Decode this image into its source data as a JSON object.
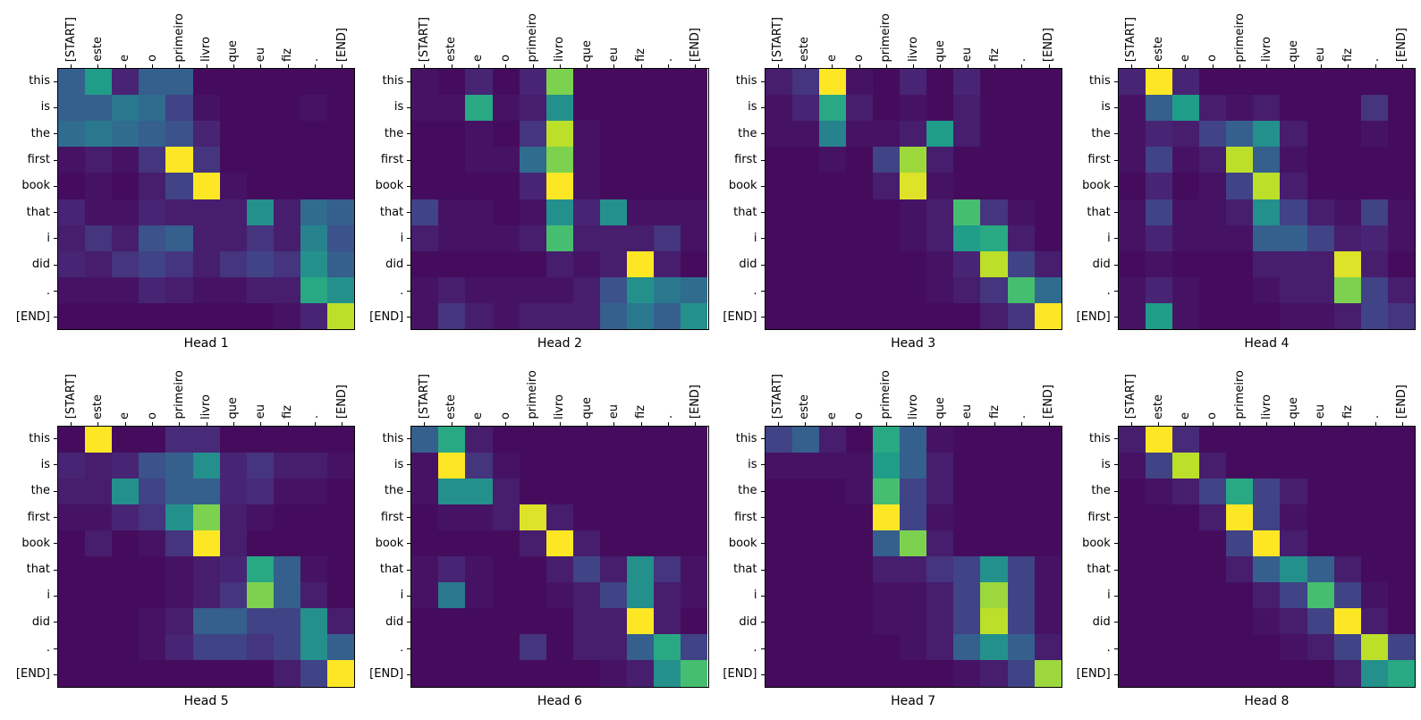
{
  "figure": {
    "background": "#ffffff",
    "text_color": "#000000"
  },
  "chart_data": {
    "type": "heatmap",
    "colormap": "viridis",
    "colormap_anchors": {
      "low": "#440154",
      "mid": "#21918c",
      "high": "#fde725"
    },
    "vmin": 0,
    "vmax": 1,
    "layout": {
      "rows": 2,
      "cols": 4,
      "grid": false,
      "x_tick_rotation_deg": 90
    },
    "x_tokens": [
      "[START]",
      "este",
      "e",
      "o",
      "primeiro",
      "livro",
      "que",
      "eu",
      "fiz",
      ".",
      "[END]"
    ],
    "y_tokens": [
      "this",
      "is",
      "the",
      "first",
      "book",
      "that",
      "i",
      "did",
      ".",
      "[END]"
    ],
    "heads": [
      {
        "title": "Head 1",
        "values": [
          [
            0.3,
            0.55,
            0.1,
            0.3,
            0.3,
            0.03,
            0.03,
            0.03,
            0.03,
            0.03,
            0.03
          ],
          [
            0.3,
            0.3,
            0.4,
            0.35,
            0.2,
            0.05,
            0.03,
            0.03,
            0.03,
            0.05,
            0.03
          ],
          [
            0.35,
            0.4,
            0.35,
            0.3,
            0.25,
            0.1,
            0.03,
            0.03,
            0.03,
            0.03,
            0.03
          ],
          [
            0.05,
            0.08,
            0.05,
            0.15,
            1.0,
            0.15,
            0.03,
            0.03,
            0.03,
            0.03,
            0.03
          ],
          [
            0.03,
            0.05,
            0.03,
            0.08,
            0.2,
            1.0,
            0.05,
            0.03,
            0.03,
            0.03,
            0.03
          ],
          [
            0.1,
            0.05,
            0.05,
            0.1,
            0.08,
            0.08,
            0.08,
            0.5,
            0.08,
            0.35,
            0.3
          ],
          [
            0.08,
            0.15,
            0.08,
            0.25,
            0.3,
            0.08,
            0.08,
            0.15,
            0.08,
            0.45,
            0.25
          ],
          [
            0.1,
            0.08,
            0.15,
            0.2,
            0.15,
            0.08,
            0.15,
            0.2,
            0.15,
            0.5,
            0.3
          ],
          [
            0.05,
            0.05,
            0.05,
            0.1,
            0.08,
            0.05,
            0.05,
            0.08,
            0.08,
            0.6,
            0.5
          ],
          [
            0.03,
            0.03,
            0.03,
            0.03,
            0.03,
            0.03,
            0.03,
            0.03,
            0.05,
            0.1,
            0.9
          ]
        ]
      },
      {
        "title": "Head 2",
        "values": [
          [
            0.05,
            0.03,
            0.1,
            0.03,
            0.1,
            0.8,
            0.03,
            0.03,
            0.03,
            0.03,
            0.03
          ],
          [
            0.05,
            0.05,
            0.6,
            0.05,
            0.08,
            0.5,
            0.03,
            0.03,
            0.03,
            0.03,
            0.03
          ],
          [
            0.03,
            0.03,
            0.05,
            0.03,
            0.15,
            0.9,
            0.05,
            0.03,
            0.03,
            0.03,
            0.03
          ],
          [
            0.03,
            0.03,
            0.05,
            0.05,
            0.35,
            0.8,
            0.05,
            0.03,
            0.03,
            0.03,
            0.03
          ],
          [
            0.03,
            0.03,
            0.03,
            0.03,
            0.1,
            1.0,
            0.05,
            0.03,
            0.03,
            0.03,
            0.03
          ],
          [
            0.2,
            0.05,
            0.05,
            0.03,
            0.05,
            0.5,
            0.1,
            0.5,
            0.05,
            0.05,
            0.05
          ],
          [
            0.08,
            0.05,
            0.05,
            0.05,
            0.08,
            0.7,
            0.08,
            0.08,
            0.08,
            0.15,
            0.05
          ],
          [
            0.03,
            0.03,
            0.03,
            0.03,
            0.03,
            0.08,
            0.05,
            0.08,
            1.0,
            0.08,
            0.03
          ],
          [
            0.05,
            0.08,
            0.05,
            0.05,
            0.05,
            0.05,
            0.08,
            0.25,
            0.5,
            0.4,
            0.35
          ],
          [
            0.05,
            0.15,
            0.08,
            0.05,
            0.08,
            0.08,
            0.08,
            0.3,
            0.4,
            0.3,
            0.5
          ]
        ]
      },
      {
        "title": "Head 3",
        "values": [
          [
            0.08,
            0.15,
            1.0,
            0.05,
            0.03,
            0.1,
            0.03,
            0.1,
            0.03,
            0.03,
            0.03
          ],
          [
            0.05,
            0.1,
            0.6,
            0.08,
            0.03,
            0.05,
            0.03,
            0.08,
            0.03,
            0.03,
            0.03
          ],
          [
            0.05,
            0.05,
            0.45,
            0.05,
            0.05,
            0.08,
            0.55,
            0.08,
            0.03,
            0.03,
            0.03
          ],
          [
            0.03,
            0.03,
            0.05,
            0.03,
            0.2,
            0.85,
            0.08,
            0.03,
            0.03,
            0.03,
            0.03
          ],
          [
            0.03,
            0.03,
            0.03,
            0.03,
            0.08,
            0.95,
            0.05,
            0.03,
            0.03,
            0.03,
            0.03
          ],
          [
            0.03,
            0.03,
            0.03,
            0.03,
            0.03,
            0.05,
            0.08,
            0.7,
            0.15,
            0.05,
            0.03
          ],
          [
            0.03,
            0.03,
            0.03,
            0.03,
            0.03,
            0.05,
            0.08,
            0.55,
            0.6,
            0.08,
            0.03
          ],
          [
            0.03,
            0.03,
            0.03,
            0.03,
            0.03,
            0.03,
            0.05,
            0.1,
            0.9,
            0.2,
            0.08
          ],
          [
            0.03,
            0.03,
            0.03,
            0.03,
            0.03,
            0.03,
            0.05,
            0.08,
            0.15,
            0.7,
            0.35
          ],
          [
            0.03,
            0.03,
            0.03,
            0.03,
            0.03,
            0.03,
            0.03,
            0.03,
            0.08,
            0.15,
            1.0
          ]
        ]
      },
      {
        "title": "Head 4",
        "values": [
          [
            0.1,
            1.0,
            0.1,
            0.03,
            0.03,
            0.03,
            0.03,
            0.03,
            0.03,
            0.03,
            0.03
          ],
          [
            0.05,
            0.3,
            0.55,
            0.08,
            0.05,
            0.08,
            0.03,
            0.03,
            0.03,
            0.15,
            0.03
          ],
          [
            0.05,
            0.1,
            0.08,
            0.2,
            0.3,
            0.5,
            0.08,
            0.03,
            0.03,
            0.05,
            0.03
          ],
          [
            0.05,
            0.2,
            0.05,
            0.08,
            0.9,
            0.3,
            0.05,
            0.03,
            0.03,
            0.03,
            0.03
          ],
          [
            0.03,
            0.1,
            0.03,
            0.05,
            0.2,
            0.9,
            0.08,
            0.03,
            0.03,
            0.03,
            0.03
          ],
          [
            0.05,
            0.2,
            0.05,
            0.05,
            0.08,
            0.5,
            0.2,
            0.08,
            0.05,
            0.2,
            0.05
          ],
          [
            0.05,
            0.1,
            0.05,
            0.05,
            0.05,
            0.3,
            0.3,
            0.2,
            0.08,
            0.1,
            0.05
          ],
          [
            0.03,
            0.05,
            0.03,
            0.03,
            0.03,
            0.08,
            0.08,
            0.08,
            0.95,
            0.08,
            0.03
          ],
          [
            0.05,
            0.1,
            0.05,
            0.03,
            0.03,
            0.05,
            0.08,
            0.08,
            0.8,
            0.2,
            0.08
          ],
          [
            0.05,
            0.55,
            0.05,
            0.03,
            0.03,
            0.03,
            0.05,
            0.05,
            0.08,
            0.2,
            0.15
          ]
        ]
      },
      {
        "title": "Head 5",
        "values": [
          [
            0.03,
            1.0,
            0.03,
            0.03,
            0.12,
            0.12,
            0.03,
            0.03,
            0.03,
            0.03,
            0.03
          ],
          [
            0.1,
            0.08,
            0.1,
            0.25,
            0.3,
            0.5,
            0.1,
            0.15,
            0.08,
            0.08,
            0.05
          ],
          [
            0.08,
            0.08,
            0.5,
            0.2,
            0.3,
            0.3,
            0.1,
            0.12,
            0.05,
            0.05,
            0.03
          ],
          [
            0.05,
            0.05,
            0.1,
            0.15,
            0.5,
            0.8,
            0.08,
            0.05,
            0.03,
            0.03,
            0.03
          ],
          [
            0.03,
            0.08,
            0.03,
            0.05,
            0.15,
            1.0,
            0.08,
            0.03,
            0.03,
            0.03,
            0.03
          ],
          [
            0.03,
            0.03,
            0.03,
            0.03,
            0.05,
            0.08,
            0.1,
            0.6,
            0.3,
            0.05,
            0.03
          ],
          [
            0.03,
            0.03,
            0.03,
            0.03,
            0.05,
            0.08,
            0.15,
            0.8,
            0.3,
            0.08,
            0.03
          ],
          [
            0.03,
            0.03,
            0.03,
            0.05,
            0.08,
            0.3,
            0.3,
            0.2,
            0.2,
            0.5,
            0.08
          ],
          [
            0.03,
            0.03,
            0.03,
            0.05,
            0.1,
            0.2,
            0.2,
            0.15,
            0.2,
            0.5,
            0.3
          ],
          [
            0.03,
            0.03,
            0.03,
            0.03,
            0.03,
            0.03,
            0.03,
            0.03,
            0.08,
            0.2,
            1.0
          ]
        ]
      },
      {
        "title": "Head 6",
        "values": [
          [
            0.3,
            0.6,
            0.08,
            0.03,
            0.03,
            0.03,
            0.03,
            0.03,
            0.03,
            0.03,
            0.03
          ],
          [
            0.05,
            1.0,
            0.15,
            0.05,
            0.03,
            0.03,
            0.03,
            0.03,
            0.03,
            0.03,
            0.03
          ],
          [
            0.05,
            0.5,
            0.5,
            0.08,
            0.03,
            0.03,
            0.03,
            0.03,
            0.03,
            0.03,
            0.03
          ],
          [
            0.03,
            0.05,
            0.05,
            0.08,
            0.95,
            0.08,
            0.03,
            0.03,
            0.03,
            0.03,
            0.03
          ],
          [
            0.03,
            0.03,
            0.03,
            0.03,
            0.08,
            1.0,
            0.08,
            0.03,
            0.03,
            0.03,
            0.03
          ],
          [
            0.05,
            0.1,
            0.05,
            0.03,
            0.03,
            0.08,
            0.2,
            0.08,
            0.5,
            0.15,
            0.05
          ],
          [
            0.05,
            0.4,
            0.05,
            0.03,
            0.03,
            0.05,
            0.08,
            0.2,
            0.5,
            0.08,
            0.05
          ],
          [
            0.03,
            0.03,
            0.03,
            0.03,
            0.03,
            0.03,
            0.08,
            0.08,
            1.0,
            0.08,
            0.03
          ],
          [
            0.03,
            0.03,
            0.03,
            0.03,
            0.15,
            0.03,
            0.08,
            0.08,
            0.3,
            0.6,
            0.2
          ],
          [
            0.03,
            0.03,
            0.03,
            0.03,
            0.03,
            0.03,
            0.03,
            0.05,
            0.08,
            0.5,
            0.7
          ]
        ]
      },
      {
        "title": "Head 7",
        "values": [
          [
            0.2,
            0.3,
            0.08,
            0.03,
            0.6,
            0.3,
            0.05,
            0.03,
            0.03,
            0.03,
            0.03
          ],
          [
            0.05,
            0.05,
            0.05,
            0.05,
            0.55,
            0.3,
            0.08,
            0.03,
            0.03,
            0.03,
            0.03
          ],
          [
            0.03,
            0.03,
            0.03,
            0.05,
            0.7,
            0.2,
            0.08,
            0.03,
            0.03,
            0.03,
            0.03
          ],
          [
            0.03,
            0.03,
            0.03,
            0.03,
            1.0,
            0.2,
            0.05,
            0.03,
            0.03,
            0.03,
            0.03
          ],
          [
            0.03,
            0.03,
            0.03,
            0.03,
            0.3,
            0.8,
            0.08,
            0.03,
            0.03,
            0.03,
            0.03
          ],
          [
            0.03,
            0.03,
            0.03,
            0.03,
            0.08,
            0.08,
            0.15,
            0.2,
            0.5,
            0.2,
            0.05
          ],
          [
            0.03,
            0.03,
            0.03,
            0.03,
            0.05,
            0.05,
            0.08,
            0.2,
            0.85,
            0.2,
            0.05
          ],
          [
            0.03,
            0.03,
            0.03,
            0.03,
            0.05,
            0.05,
            0.08,
            0.2,
            0.9,
            0.2,
            0.05
          ],
          [
            0.03,
            0.03,
            0.03,
            0.03,
            0.03,
            0.05,
            0.08,
            0.3,
            0.5,
            0.3,
            0.08
          ],
          [
            0.03,
            0.03,
            0.03,
            0.03,
            0.03,
            0.03,
            0.03,
            0.05,
            0.08,
            0.2,
            0.85
          ]
        ]
      },
      {
        "title": "Head 8",
        "values": [
          [
            0.08,
            1.0,
            0.12,
            0.03,
            0.03,
            0.03,
            0.03,
            0.03,
            0.03,
            0.03,
            0.03
          ],
          [
            0.05,
            0.2,
            0.9,
            0.08,
            0.03,
            0.03,
            0.03,
            0.03,
            0.03,
            0.03,
            0.03
          ],
          [
            0.03,
            0.05,
            0.08,
            0.2,
            0.6,
            0.2,
            0.08,
            0.03,
            0.03,
            0.03,
            0.03
          ],
          [
            0.03,
            0.03,
            0.03,
            0.08,
            1.0,
            0.2,
            0.05,
            0.03,
            0.03,
            0.03,
            0.03
          ],
          [
            0.03,
            0.03,
            0.03,
            0.03,
            0.2,
            1.0,
            0.08,
            0.03,
            0.03,
            0.03,
            0.03
          ],
          [
            0.03,
            0.03,
            0.03,
            0.03,
            0.08,
            0.3,
            0.5,
            0.3,
            0.08,
            0.03,
            0.03
          ],
          [
            0.03,
            0.03,
            0.03,
            0.03,
            0.03,
            0.08,
            0.2,
            0.7,
            0.2,
            0.05,
            0.03
          ],
          [
            0.03,
            0.03,
            0.03,
            0.03,
            0.03,
            0.05,
            0.08,
            0.2,
            1.0,
            0.08,
            0.03
          ],
          [
            0.03,
            0.03,
            0.03,
            0.03,
            0.03,
            0.03,
            0.05,
            0.08,
            0.2,
            0.9,
            0.2
          ],
          [
            0.03,
            0.03,
            0.03,
            0.03,
            0.03,
            0.03,
            0.03,
            0.03,
            0.08,
            0.5,
            0.6
          ]
        ]
      }
    ]
  }
}
